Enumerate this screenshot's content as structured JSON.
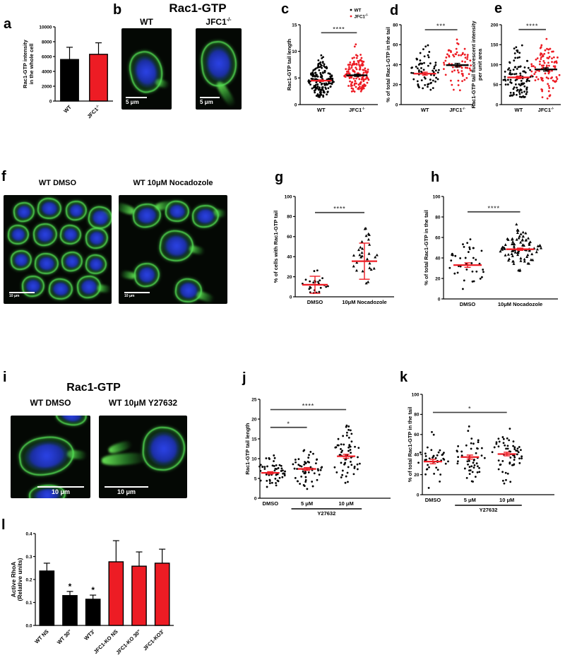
{
  "panels": {
    "a": {
      "letter": "a"
    },
    "b": {
      "letter": "b",
      "title": "Rac1-GTP",
      "images": [
        {
          "label": "WT",
          "sup": "",
          "scale_bar": "5 μm"
        },
        {
          "label": "JFC1",
          "sup": "-/-",
          "scale_bar": "5 μm"
        }
      ]
    },
    "c": {
      "letter": "c"
    },
    "d": {
      "letter": "d"
    },
    "e": {
      "letter": "e"
    },
    "f": {
      "letter": "f",
      "images": [
        {
          "label": "WT DMSO",
          "scale_bar": "10 μm"
        },
        {
          "label": "WT 10μM Nocadozole",
          "scale_bar": "10 μm"
        }
      ]
    },
    "g": {
      "letter": "g"
    },
    "h": {
      "letter": "h"
    },
    "i": {
      "letter": "i",
      "title": "Rac1-GTP",
      "images": [
        {
          "label": "WT DMSO",
          "scale_bar": "10 μm"
        },
        {
          "label": "WT 10μM Y27632",
          "scale_bar": "10 μm"
        }
      ]
    },
    "j": {
      "letter": "j"
    },
    "k": {
      "letter": "k"
    },
    "l": {
      "letter": "l"
    }
  },
  "colors": {
    "black": "#000000",
    "red": "#ed1c24",
    "sig_stars": "#4a4a4a"
  },
  "chart_data": [
    {
      "id": "a",
      "type": "bar",
      "ylabel": [
        "Rac1-GTP intensity",
        "in the whole cell"
      ],
      "ylim": [
        0,
        10000
      ],
      "yticks": [
        0,
        2000,
        4000,
        6000,
        8000,
        10000
      ],
      "categories": [
        {
          "label": "WT"
        },
        {
          "label": "JFC1",
          "sup": "-/-"
        }
      ],
      "values": [
        5600,
        6300
      ],
      "errors": [
        1650,
        1550
      ],
      "colors": [
        "#000000",
        "#ed1c24"
      ],
      "stars": [
        null,
        null
      ]
    },
    {
      "id": "c",
      "type": "scatter",
      "ylabel": [
        "Rac1-GTP tail length"
      ],
      "ylim": [
        0,
        15
      ],
      "yticks": [
        0,
        5,
        10,
        15
      ],
      "groups": [
        {
          "label": "WT",
          "marker": "circle",
          "color": "#000000",
          "n": 170,
          "mean": 4.5,
          "sd": 1.8,
          "min": 1.3,
          "max": 11.0,
          "err": 0.15,
          "mean_color": "#ed1c24"
        },
        {
          "label": "JFC1",
          "sup": "-/-",
          "marker": "circle",
          "color": "#ed1c24",
          "n": 150,
          "mean": 5.5,
          "sd": 2.1,
          "min": 2.1,
          "max": 12.4,
          "err": 0.2,
          "mean_color": "#000000"
        }
      ],
      "sig": [
        {
          "from": 0,
          "to": 1,
          "y": 13.5,
          "stars": "****"
        }
      ],
      "legend": [
        {
          "label": "WT",
          "color": "#000000"
        },
        {
          "label": "JFC1",
          "sup": "-/-",
          "color": "#ed1c24"
        }
      ]
    },
    {
      "id": "d",
      "type": "scatter",
      "ylabel": [
        "% of total  Rac1-GTP in the tail"
      ],
      "ylim": [
        0,
        80
      ],
      "yticks": [
        0,
        20,
        40,
        60,
        80
      ],
      "groups": [
        {
          "label": "WT",
          "marker": "circle",
          "color": "#000000",
          "n": 68,
          "mean": 31,
          "sd": 12.5,
          "min": 11,
          "max": 74,
          "err": 1.5,
          "mean_color": "#ed1c24"
        },
        {
          "label": "JFC1",
          "sup": "-/-",
          "marker": "circle",
          "color": "#ed1c24",
          "n": 72,
          "mean": 39.5,
          "sd": 13,
          "min": 10,
          "max": 70,
          "err": 1.8,
          "mean_color": "#000000"
        }
      ],
      "sig": [
        {
          "from": 0,
          "to": 1,
          "y": 75,
          "stars": "***"
        }
      ]
    },
    {
      "id": "e",
      "type": "scatter",
      "ylabel": [
        "Rac1-GTP tail fluorescent intensity",
        "per unit area"
      ],
      "ylim": [
        0,
        200
      ],
      "yticks": [
        0,
        50,
        100,
        150,
        200
      ],
      "groups": [
        {
          "label": "WT",
          "marker": "circle",
          "color": "#000000",
          "n": 105,
          "mean": 68,
          "sd": 38,
          "min": 18,
          "max": 172,
          "err": 3,
          "mean_color": "#ed1c24"
        },
        {
          "label": "JFC1",
          "sup": "-/-",
          "marker": "circle",
          "color": "#ed1c24",
          "n": 100,
          "mean": 88,
          "sd": 36,
          "min": 15,
          "max": 186,
          "err": 4,
          "mean_color": "#000000"
        }
      ],
      "sig": [
        {
          "from": 0,
          "to": 1,
          "y": 188,
          "stars": "****"
        }
      ]
    },
    {
      "id": "g",
      "type": "scatter",
      "ylabel": [
        "% of cells with Rac1-GTP tail"
      ],
      "ylim": [
        0,
        100
      ],
      "yticks": [
        0,
        20,
        40,
        60,
        80,
        100
      ],
      "groups": [
        {
          "label": "DMSO",
          "marker": "circle",
          "color": "#000000",
          "n": 24,
          "mean": 12,
          "sd": 7,
          "min": 2.5,
          "max": 27,
          "err": 8.5,
          "mean_color": "#ed1c24"
        },
        {
          "label": "10μM Nocadozole",
          "marker": "triangle",
          "color": "#000000",
          "n": 30,
          "mean": 35.5,
          "sd": 16,
          "min": 13,
          "max": 80,
          "err": 18,
          "mean_color": "#ed1c24"
        }
      ],
      "sig": [
        {
          "from": 0,
          "to": 1,
          "y": 84,
          "stars": "****"
        }
      ]
    },
    {
      "id": "h",
      "type": "scatter",
      "ylabel": [
        "% of total Rac1-GTP  in the tail"
      ],
      "ylim": [
        0,
        100
      ],
      "yticks": [
        0,
        20,
        40,
        60,
        80,
        100
      ],
      "groups": [
        {
          "label": "DMSO",
          "marker": "circle",
          "color": "#000000",
          "n": 38,
          "mean": 33,
          "sd": 14,
          "min": 5,
          "max": 77,
          "err": 2.2,
          "mean_color": "#ed1c24"
        },
        {
          "label": "10μM Nocadozole",
          "marker": "triangle",
          "color": "#000000",
          "n": 88,
          "mean": 48.5,
          "sd": 9.5,
          "min": 16,
          "max": 76,
          "err": 1.1,
          "mean_color": "#ed1c24"
        }
      ],
      "sig": [
        {
          "from": 0,
          "to": 1,
          "y": 85,
          "stars": "****"
        }
      ]
    },
    {
      "id": "j",
      "type": "scatter",
      "ylabel": [
        "Rac1-GTP tail length"
      ],
      "ylim": [
        0,
        25
      ],
      "yticks": [
        0,
        5,
        10,
        15,
        20,
        25
      ],
      "groups": [
        {
          "label": "DMSO",
          "marker": "circle",
          "color": "#000000",
          "n": 52,
          "mean": 6.4,
          "sd": 2.1,
          "min": 2.4,
          "max": 12,
          "err": 0.3,
          "mean_color": "#ed1c24"
        },
        {
          "label": "5 μM",
          "marker": "circle",
          "color": "#000000",
          "n": 55,
          "mean": 7.4,
          "sd": 2.7,
          "min": 2.3,
          "max": 15.8,
          "err": 0.35,
          "mean_color": "#ed1c24"
        },
        {
          "label": "10 μM",
          "marker": "circle",
          "color": "#000000",
          "n": 62,
          "mean": 10.6,
          "sd": 3.6,
          "min": 2.6,
          "max": 21,
          "err": 0.5,
          "mean_color": "#ed1c24"
        }
      ],
      "sig": [
        {
          "from": 0,
          "to": 1,
          "y": 17.9,
          "stars": "*"
        },
        {
          "from": 0,
          "to": 2,
          "y": 22.4,
          "stars": "****"
        }
      ],
      "group_label": {
        "text": "Y27632",
        "from": 1,
        "to": 2
      }
    },
    {
      "id": "k",
      "type": "scatter",
      "ylabel": [
        "% of total Rac1-GTP in the tail"
      ],
      "ylim": [
        0,
        100
      ],
      "yticks": [
        0,
        20,
        40,
        60,
        80,
        100
      ],
      "groups": [
        {
          "label": "DMSO",
          "marker": "circle",
          "color": "#000000",
          "n": 40,
          "mean": 33,
          "sd": 14.5,
          "min": 6,
          "max": 77,
          "err": 2.2,
          "mean_color": "#ed1c24"
        },
        {
          "label": "5 μM",
          "marker": "circle",
          "color": "#000000",
          "n": 50,
          "mean": 37.5,
          "sd": 14,
          "min": 10,
          "max": 71,
          "err": 2,
          "mean_color": "#ed1c24"
        },
        {
          "label": "10 μM",
          "marker": "circle",
          "color": "#000000",
          "n": 58,
          "mean": 40.5,
          "sd": 13.5,
          "min": 10,
          "max": 67,
          "err": 1.8,
          "mean_color": "#ed1c24"
        }
      ],
      "sig": [
        {
          "from": 0,
          "to": 2,
          "y": 82,
          "stars": "*"
        }
      ],
      "group_label": {
        "text": "Y27632",
        "from": 1,
        "to": 2
      }
    },
    {
      "id": "l",
      "type": "bar",
      "ylabel": [
        "Active RhoA",
        "(Relative units)"
      ],
      "ylim": [
        0,
        0.4
      ],
      "yticks": [
        0,
        0.1,
        0.2,
        0.3,
        0.4
      ],
      "ytick_labels": [
        "0.0",
        "0.1",
        "0.2",
        "0.3",
        "0.4"
      ],
      "categories": [
        {
          "label": "WT NS"
        },
        {
          "label": "WT 30\""
        },
        {
          "label": "WT3'"
        },
        {
          "label": "JFC1-KO NS"
        },
        {
          "label": "JFC1-KO 30\""
        },
        {
          "label": "JFC1-KO3'"
        }
      ],
      "values": [
        0.237,
        0.13,
        0.114,
        0.277,
        0.258,
        0.271
      ],
      "errors": [
        0.034,
        0.018,
        0.018,
        0.092,
        0.062,
        0.061
      ],
      "colors": [
        "#000000",
        "#000000",
        "#000000",
        "#ed1c24",
        "#ed1c24",
        "#ed1c24"
      ],
      "stars": [
        null,
        "*",
        "*",
        null,
        null,
        null
      ]
    }
  ]
}
